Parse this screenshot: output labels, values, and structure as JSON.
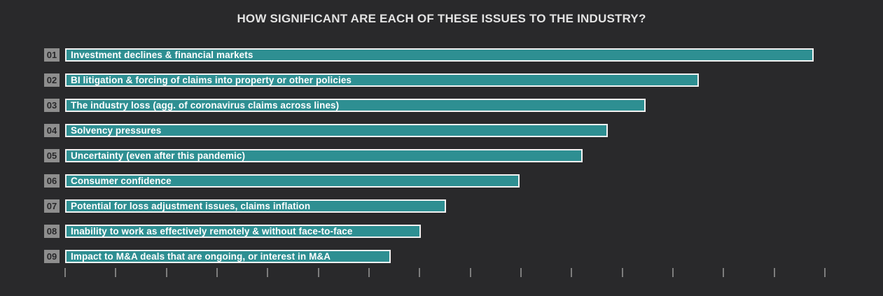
{
  "page": {
    "background_color": "#29292b"
  },
  "colors": {
    "bar_fill": "#2e8f92",
    "bar_border": "#f2f2f2",
    "bar_text": "#ffffff",
    "badge_background": "#8e8e8e",
    "badge_text": "#28282a",
    "title_text": "#e2e2e2",
    "axis_tick": "#7d7d7d"
  },
  "chart_data": {
    "type": "bar",
    "orientation": "horizontal",
    "title": "HOW SIGNIFICANT ARE EACH OF THESE ISSUES TO THE INDUSTRY?",
    "ranks": [
      "01",
      "02",
      "03",
      "04",
      "05",
      "06",
      "07",
      "08",
      "09"
    ],
    "categories": [
      "Investment declines & financial markets",
      "BI litigation & forcing of claims into property or other policies",
      "The industry loss (agg. of coronavirus claims across lines)",
      "Solvency pressures",
      "Uncertainty (even after this pandemic)",
      "Consumer confidence",
      "Potential for loss adjustment issues, claims inflation",
      "Inability to work as effectively remotely & without face-to-face",
      "Impact to M&A deals that are ongoing, or interest in M&A"
    ],
    "values": [
      98.5,
      83.4,
      76.4,
      71.4,
      68.1,
      59.8,
      50.1,
      46.8,
      42.9
    ],
    "value_meaning": "bar length as percent of axis width; no numeric data labels are shown in the chart",
    "xlim": [
      0,
      100
    ],
    "xlabel": "",
    "ylabel": "",
    "axis": {
      "tick_count": 16,
      "tick_labels_visible": false
    },
    "legend": false,
    "grid": false
  }
}
